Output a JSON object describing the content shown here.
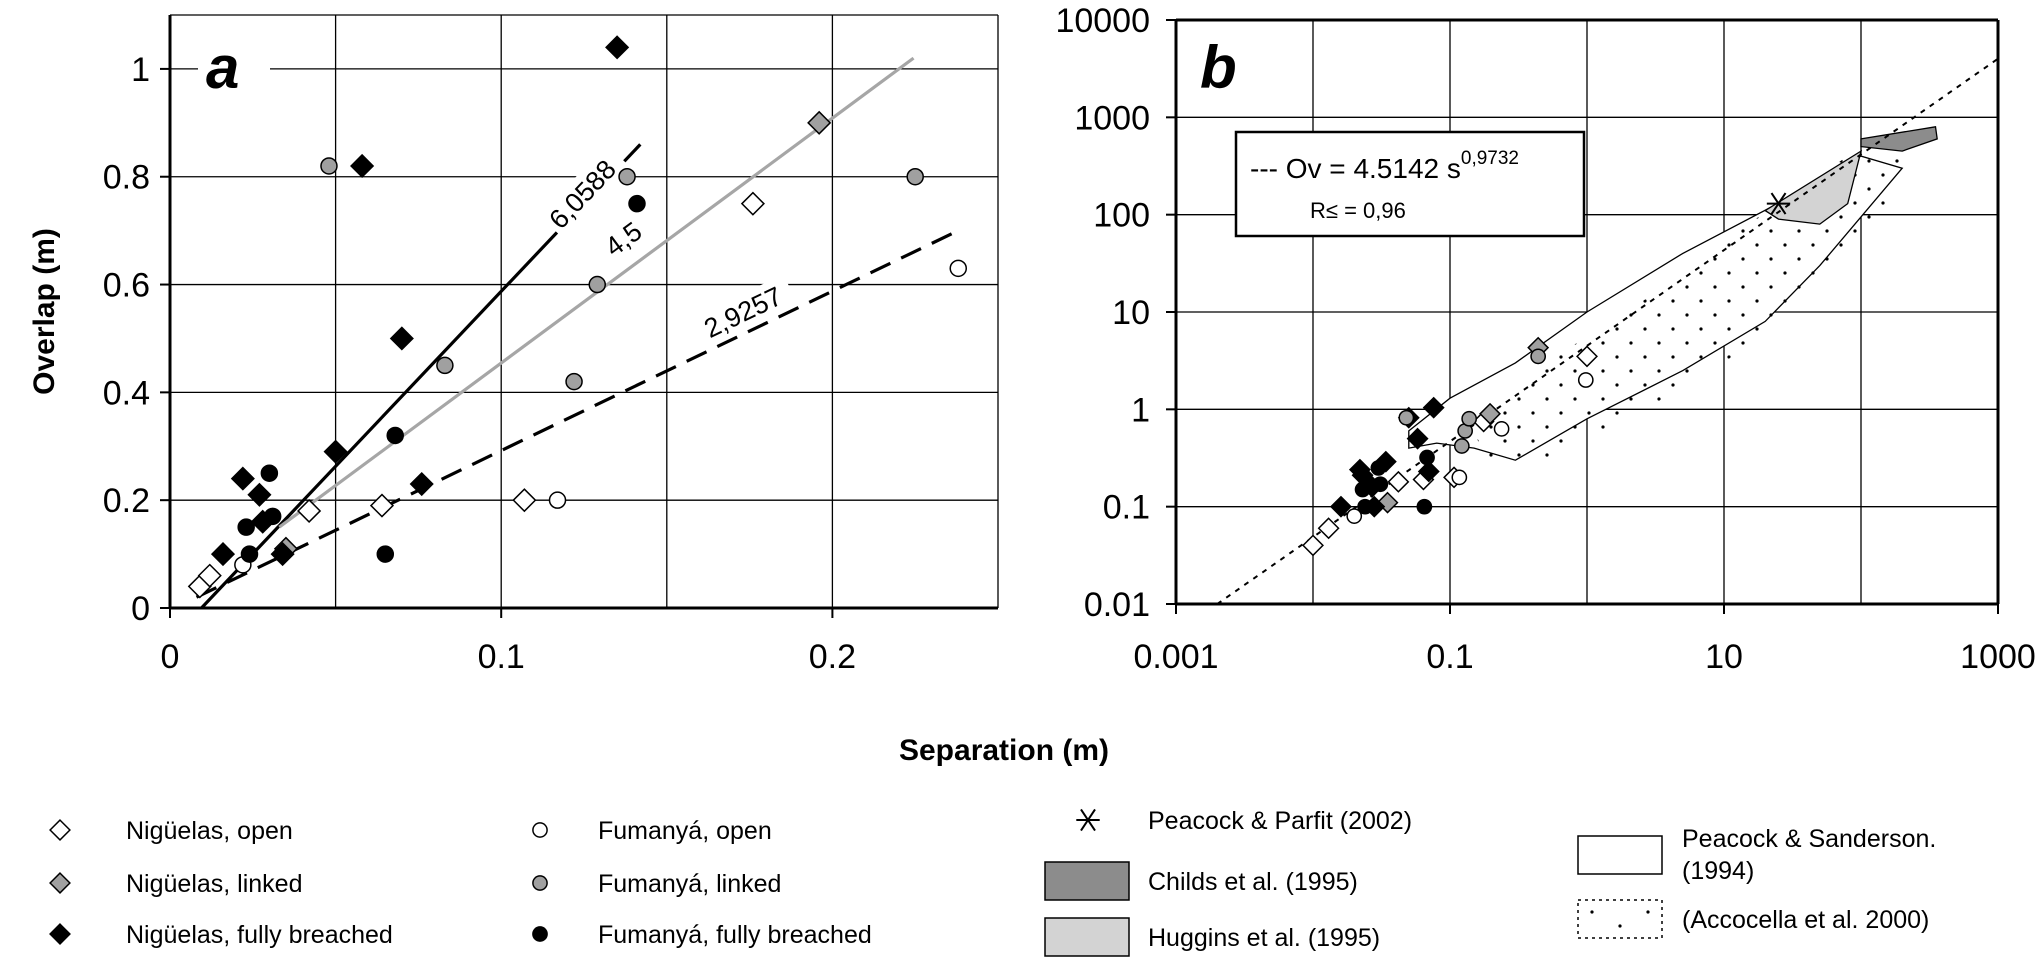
{
  "chart_data": [
    {
      "type": "scatter",
      "panel_label": "a",
      "xlabel": "Separation (m)",
      "ylabel": "Overlap (m)",
      "xlim": [
        0,
        0.25
      ],
      "ylim": [
        0,
        1.1
      ],
      "x_ticks": [
        "0",
        "0.1",
        "0.2"
      ],
      "y_ticks": [
        "0",
        "0.2",
        "0.4",
        "0.6",
        "0.8",
        "1"
      ],
      "grid": true,
      "series": [
        {
          "name": "Nigüelas, open",
          "marker": "diamond-open",
          "x": [
            0.009,
            0.012,
            0.042,
            0.064,
            0.107,
            0.176
          ],
          "y": [
            0.04,
            0.06,
            0.18,
            0.19,
            0.2,
            0.75
          ]
        },
        {
          "name": "Nigüelas, linked",
          "marker": "diamond-gray",
          "x": [
            0.035,
            0.196
          ],
          "y": [
            0.11,
            0.9
          ]
        },
        {
          "name": "Nigüelas, fully breached",
          "marker": "diamond-black",
          "x": [
            0.016,
            0.022,
            0.027,
            0.028,
            0.034,
            0.05,
            0.058,
            0.07,
            0.076,
            0.135
          ],
          "y": [
            0.1,
            0.24,
            0.21,
            0.16,
            0.1,
            0.29,
            0.82,
            0.5,
            0.23,
            1.04
          ]
        },
        {
          "name": "Fumanyá, open",
          "marker": "circle-open",
          "x": [
            0.022,
            0.117,
            0.238
          ],
          "y": [
            0.08,
            0.2,
            0.63
          ]
        },
        {
          "name": "Fumanyá, linked",
          "marker": "circle-gray",
          "x": [
            0.048,
            0.083,
            0.122,
            0.129,
            0.138,
            0.225
          ],
          "y": [
            0.82,
            0.45,
            0.42,
            0.6,
            0.8,
            0.8
          ]
        },
        {
          "name": "Fumanyá, fully breached",
          "marker": "circle-black",
          "x": [
            0.023,
            0.024,
            0.03,
            0.031,
            0.065,
            0.068,
            0.141
          ],
          "y": [
            0.15,
            0.1,
            0.25,
            0.17,
            0.1,
            0.32,
            0.75
          ]
        }
      ],
      "lines": [
        {
          "label": "6,0588",
          "style": "solid-black",
          "x": [
            0.0095,
            0.142
          ],
          "y": [
            0.0,
            0.86
          ]
        },
        {
          "label": "4,5",
          "style": "solid-gray",
          "x": [
            0.033,
            0.2245
          ],
          "y": [
            0.15,
            1.02
          ]
        },
        {
          "label": "2,9257",
          "style": "dashed-black",
          "x": [
            0.008,
            0.238
          ],
          "y": [
            0.02,
            0.7
          ]
        }
      ]
    },
    {
      "type": "scatter",
      "panel_label": "b",
      "xlabel": "Separation (m)",
      "ylabel": "",
      "xscale": "log",
      "yscale": "log",
      "xlim": [
        0.001,
        1000
      ],
      "ylim": [
        0.01,
        10000
      ],
      "x_ticks": [
        "0.001",
        "0.1",
        "10",
        "1000"
      ],
      "y_ticks": [
        "0.01",
        "0.1",
        "1",
        "10",
        "100",
        "1000",
        "10000"
      ],
      "grid": true,
      "equation": {
        "prefix": "--- Ov = 4.5142 s",
        "exponent": "0,9732",
        "r2": "R≤ = 0,96"
      },
      "fit_line": {
        "style": "dotted",
        "x": [
          0.002,
          1000
        ],
        "y": [
          0.01,
          4000
        ]
      },
      "series": [
        {
          "name": "Nigüelas, open",
          "marker": "diamond-open",
          "x": [
            0.01,
            0.013,
            0.042,
            0.064,
            0.107,
            0.176,
            1.0
          ],
          "y": [
            0.04,
            0.06,
            0.18,
            0.19,
            0.2,
            0.75,
            3.5
          ]
        },
        {
          "name": "Nigüelas, linked",
          "marker": "diamond-gray",
          "x": [
            0.035,
            0.196,
            0.44
          ],
          "y": [
            0.11,
            0.9,
            4.3
          ]
        },
        {
          "name": "Nigüelas, fully breached",
          "marker": "diamond-black",
          "x": [
            0.016,
            0.022,
            0.023,
            0.027,
            0.028,
            0.034,
            0.05,
            0.058,
            0.07,
            0.076
          ],
          "y": [
            0.1,
            0.24,
            0.21,
            0.16,
            0.1,
            0.29,
            0.82,
            0.5,
            0.23,
            1.04
          ]
        },
        {
          "name": "Fumanyá, open",
          "marker": "circle-open",
          "x": [
            0.02,
            0.117,
            0.238,
            0.98
          ],
          "y": [
            0.08,
            0.2,
            0.63,
            2.0
          ]
        },
        {
          "name": "Fumanyá, linked",
          "marker": "circle-gray",
          "x": [
            0.048,
            0.122,
            0.129,
            0.138,
            0.44
          ],
          "y": [
            0.82,
            0.42,
            0.6,
            0.8,
            3.5
          ]
        },
        {
          "name": "Fumanyá, fully breached",
          "marker": "circle-black",
          "x": [
            0.023,
            0.024,
            0.03,
            0.031,
            0.065,
            0.068
          ],
          "y": [
            0.15,
            0.1,
            0.25,
            0.17,
            0.1,
            0.32
          ]
        },
        {
          "name": "Peacock & Parfit (2002)",
          "marker": "asterisk",
          "x": [
            25
          ],
          "y": [
            130
          ]
        }
      ],
      "regions": [
        {
          "name": "Childs et al. (1995)",
          "fill": "#8c8c8c",
          "x": [
            100,
            350,
            360,
            200,
            100
          ],
          "y": [
            600,
            800,
            600,
            450,
            500
          ]
        },
        {
          "name": "Huggins et al. (1995)",
          "fill": "#d3d3d3",
          "x": [
            20,
            100,
            80,
            50,
            25
          ],
          "y": [
            110,
            450,
            130,
            80,
            90
          ]
        },
        {
          "name": "Peacock & Sanderson. (1994)",
          "fill": "#ffffff",
          "x": [
            0.05,
            0.1,
            0.3,
            1,
            5,
            30,
            100,
            200,
            50,
            20,
            5,
            1,
            0.3,
            0.15,
            0.08,
            0.05
          ],
          "y": [
            0.6,
            1.3,
            3,
            10,
            40,
            150,
            400,
            300,
            30,
            8,
            2.5,
            0.8,
            0.3,
            0.4,
            0.45,
            0.4
          ]
        },
        {
          "name": "(Accocella et al. 2000)",
          "fill": "dotted",
          "x": [
            0.14,
            0.5,
            3,
            15,
            80,
            200,
            150,
            40,
            10,
            2,
            0.5,
            0.2
          ],
          "y": [
            0.7,
            3,
            15,
            80,
            400,
            450,
            100,
            15,
            3,
            0.8,
            0.3,
            0.25
          ]
        }
      ]
    }
  ],
  "legend": {
    "items": [
      {
        "marker": "diamond-open",
        "label": "Nigüelas, open"
      },
      {
        "marker": "diamond-gray",
        "label": "Nigüelas, linked"
      },
      {
        "marker": "diamond-black",
        "label": "Nigüelas, fully breached"
      },
      {
        "marker": "circle-open",
        "label": "Fumanyá, open"
      },
      {
        "marker": "circle-gray",
        "label": "Fumanyá, linked"
      },
      {
        "marker": "circle-black",
        "label": "Fumanyá, fully breached"
      },
      {
        "marker": "asterisk",
        "label": "Peacock & Parfit (2002)"
      },
      {
        "marker": "swatch-dark",
        "label": "Childs et al. (1995)"
      },
      {
        "marker": "swatch-light",
        "label": "Huggins et al. (1995)"
      },
      {
        "marker": "swatch-white",
        "label": "Peacock & Sanderson. (1994)"
      },
      {
        "marker": "swatch-dotted",
        "label": "(Accocella et al. 2000)"
      }
    ]
  },
  "colors": {
    "black": "#000000",
    "gray_marker": "#a0a0a0",
    "gray_line": "#a6a6a6",
    "dark_region": "#8c8c8c",
    "light_region": "#d3d3d3"
  }
}
